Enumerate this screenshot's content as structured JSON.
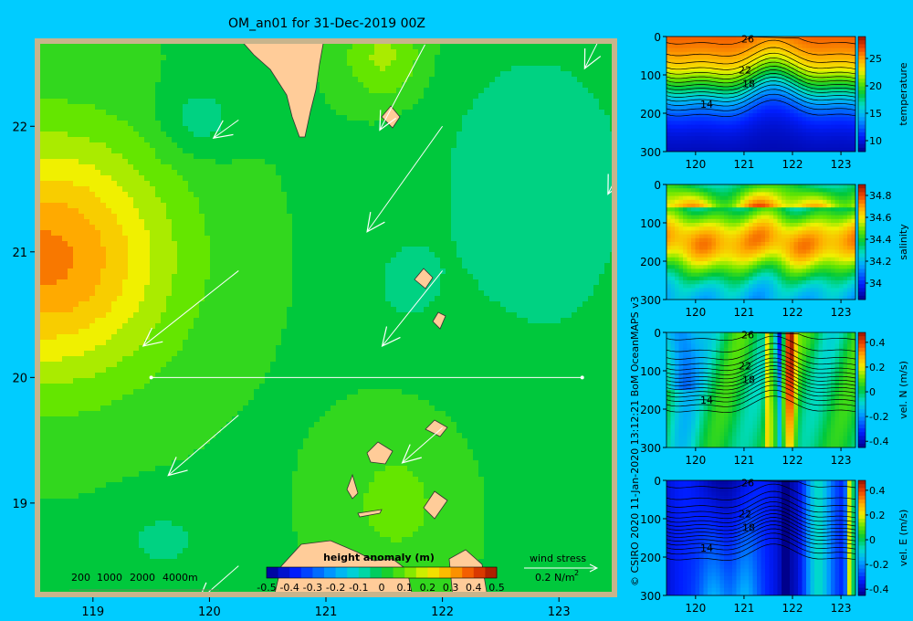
{
  "title": "OM_an01 for 31-Dec-2019 00Z",
  "credit": "© CSIRO 2020  11-Jan-2020 13:12:21 BoM OceanMAPS v3",
  "colors": {
    "page_bg": "#00ccff",
    "map_frame": "#c8b48c",
    "land": "#ffcc99",
    "transect_line": "#ffffff"
  },
  "chart_data": [
    {
      "type": "heatmap",
      "name": "map",
      "title": "OM_an01 for 31-Dec-2019 00Z",
      "xlim": [
        118.5,
        123.5
      ],
      "ylim": [
        18.25,
        22.7
      ],
      "xticks": [
        119,
        120,
        121,
        122,
        123
      ],
      "yticks": [
        19,
        20,
        21,
        22
      ],
      "colorbar": {
        "label": "height anomaly (m)",
        "min": -0.5,
        "max": 0.5,
        "tick_labels": [
          "-0.5",
          "-0.4",
          "-0.3",
          "-0.2",
          "-0.1",
          "0",
          "0.1",
          "0.2",
          "0.3",
          "0.4",
          "0.5"
        ]
      },
      "depth_legend": [
        "200",
        "1000",
        "2000",
        "4000m"
      ],
      "wind_legend": {
        "label": "wind stress",
        "value": "0.2 N/m",
        "sup": "2"
      },
      "transect": {
        "lat": 20,
        "lon_start": 119.5,
        "lon_end": 123.2
      },
      "anomaly_centers": [
        {
          "lon": 118.6,
          "lat": 20.95,
          "value": 0.32,
          "sx": 1.05,
          "sy": 0.95
        },
        {
          "lon": 119.9,
          "lat": 22.05,
          "value": -0.08,
          "sx": 0.35,
          "sy": 0.3
        },
        {
          "lon": 121.5,
          "lat": 22.55,
          "value": 0.12,
          "sx": 0.35,
          "sy": 0.35
        },
        {
          "lon": 122.8,
          "lat": 21.5,
          "value": -0.09,
          "sx": 0.9,
          "sy": 1.2
        },
        {
          "lon": 121.7,
          "lat": 20.75,
          "value": -0.07,
          "sx": 0.25,
          "sy": 0.3
        },
        {
          "lon": 121.6,
          "lat": 19.0,
          "value": 0.07,
          "sx": 0.55,
          "sy": 0.6
        },
        {
          "lon": 119.6,
          "lat": 18.7,
          "value": -0.06,
          "sx": 0.4,
          "sy": 0.3
        },
        {
          "lon": 123.2,
          "lat": 19.3,
          "value": -0.03,
          "sx": 0.6,
          "sy": 0.9
        }
      ],
      "wind_vectors": [
        {
          "lon": 120.25,
          "lat": 22.05,
          "u": -0.25,
          "v": -0.18
        },
        {
          "lon": 121.85,
          "lat": 22.65,
          "u": -0.45,
          "v": -0.85
        },
        {
          "lon": 123.35,
          "lat": 22.7,
          "u": -0.15,
          "v": -0.3
        },
        {
          "lon": 122.0,
          "lat": 22.0,
          "u": -0.75,
          "v": -1.05
        },
        {
          "lon": 123.55,
          "lat": 21.7,
          "u": -0.15,
          "v": -0.3
        },
        {
          "lon": 120.25,
          "lat": 20.85,
          "u": -0.95,
          "v": -0.75
        },
        {
          "lon": 122.0,
          "lat": 20.85,
          "u": -0.6,
          "v": -0.75
        },
        {
          "lon": 123.55,
          "lat": 20.5,
          "u": -0.1,
          "v": -0.15
        },
        {
          "lon": 120.25,
          "lat": 19.7,
          "u": -0.7,
          "v": -0.6
        },
        {
          "lon": 122.0,
          "lat": 19.6,
          "u": -0.4,
          "v": -0.35
        },
        {
          "lon": 120.25,
          "lat": 18.5,
          "u": -0.4,
          "v": -0.35
        }
      ]
    },
    {
      "type": "heatmap",
      "name": "temperature",
      "xlim": [
        119.4,
        123.3
      ],
      "ylim": [
        300,
        0
      ],
      "xticks": [
        120,
        121,
        122,
        123
      ],
      "yticks": [
        0,
        100,
        200,
        300
      ],
      "colorbar": {
        "label": "temperature",
        "min": 8,
        "max": 29,
        "tick_labels": [
          "10",
          "15",
          "20",
          "25"
        ],
        "tick_values": [
          10,
          15,
          20,
          25
        ]
      },
      "contour_labels": [
        "26",
        "22",
        "18",
        "14"
      ]
    },
    {
      "type": "heatmap",
      "name": "salinity",
      "xlim": [
        119.4,
        123.3
      ],
      "ylim": [
        300,
        0
      ],
      "xticks": [
        120,
        121,
        122,
        123
      ],
      "yticks": [
        0,
        100,
        200,
        300
      ],
      "colorbar": {
        "label": "salinity",
        "min": 33.85,
        "max": 34.9,
        "tick_labels": [
          "34",
          "34.2",
          "34.4",
          "34.6",
          "34.8"
        ],
        "tick_values": [
          34,
          34.2,
          34.4,
          34.6,
          34.8
        ]
      }
    },
    {
      "type": "heatmap",
      "name": "velocity-north",
      "xlim": [
        119.4,
        123.3
      ],
      "ylim": [
        300,
        0
      ],
      "xticks": [
        120,
        121,
        122,
        123
      ],
      "yticks": [
        0,
        100,
        200,
        300
      ],
      "colorbar": {
        "label": "vel. N (m/s)",
        "min": -0.45,
        "max": 0.48,
        "tick_labels": [
          "-0.4",
          "-0.2",
          "0",
          "0.2",
          "0.4"
        ],
        "tick_values": [
          -0.4,
          -0.2,
          0,
          0.2,
          0.4
        ]
      },
      "contour_labels": [
        "26",
        "22",
        "18",
        "14"
      ]
    },
    {
      "type": "heatmap",
      "name": "velocity-east",
      "xlim": [
        119.4,
        123.3
      ],
      "ylim": [
        300,
        0
      ],
      "xticks": [
        120,
        121,
        122,
        123
      ],
      "yticks": [
        0,
        100,
        200,
        300
      ],
      "colorbar": {
        "label": "vel. E (m/s)",
        "min": -0.45,
        "max": 0.48,
        "tick_labels": [
          "-0.4",
          "-0.2",
          "0",
          "0.2",
          "0.4"
        ],
        "tick_values": [
          -0.4,
          -0.2,
          0,
          0.2,
          0.4
        ]
      },
      "contour_labels": [
        "26",
        "22",
        "18",
        "14"
      ]
    }
  ]
}
